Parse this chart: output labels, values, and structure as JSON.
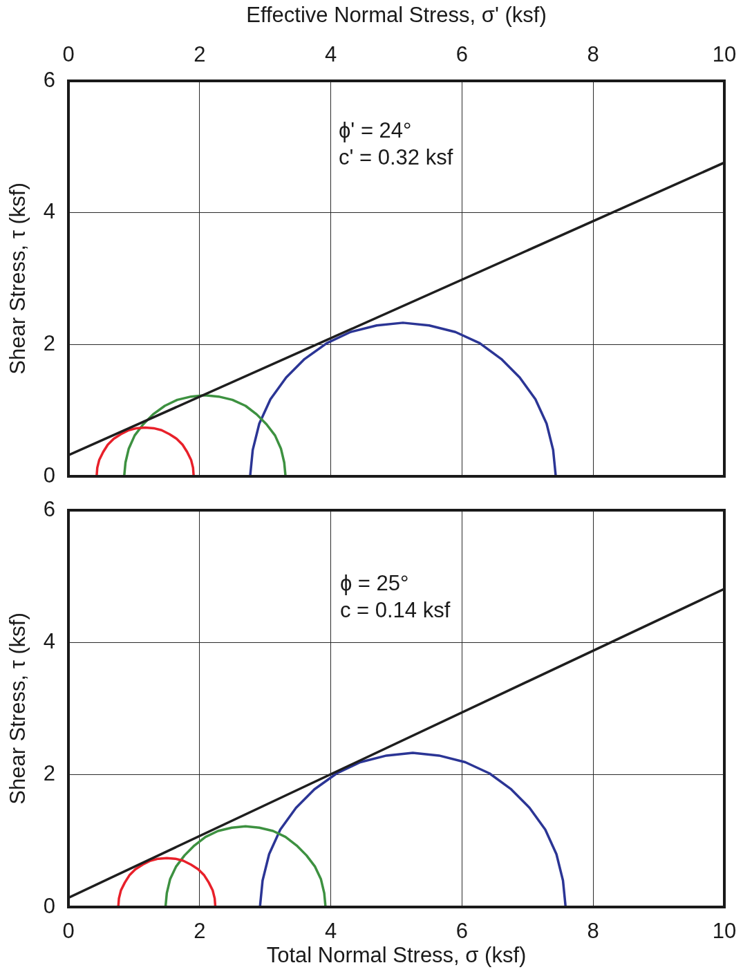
{
  "chart_data": [
    {
      "type": "line",
      "xlabel": "Effective Normal Stress, σ' (ksf)",
      "ylabel": "Shear Stress, τ (ksf)",
      "xlim": [
        0,
        10
      ],
      "xticks": [
        0,
        2,
        4,
        6,
        8,
        10
      ],
      "ylim": [
        0,
        6
      ],
      "yticks": [
        0,
        2,
        4,
        6
      ],
      "grid": true,
      "marker": "none",
      "annotations": [
        "ϕ' = 24°",
        "c' = 0.32 ksf"
      ],
      "series": [
        {
          "color": "#1e1e1e",
          "x": [
            0,
            10
          ],
          "values": [
            0.32,
            4.76
          ]
        },
        {
          "color": "#e8202a",
          "x": [
            0.43,
            0.44,
            0.47,
            0.53,
            0.6,
            0.69,
            0.8,
            0.92,
            1.04,
            1.17,
            1.3,
            1.42,
            1.54,
            1.65,
            1.74,
            1.81,
            1.87,
            1.9,
            1.91
          ],
          "values": [
            0,
            0.13,
            0.25,
            0.37,
            0.48,
            0.57,
            0.64,
            0.7,
            0.73,
            0.74,
            0.73,
            0.7,
            0.64,
            0.57,
            0.48,
            0.37,
            0.25,
            0.13,
            0
          ]
        },
        {
          "color": "#3d9140",
          "x": [
            0.85,
            0.87,
            0.92,
            1.01,
            1.14,
            1.29,
            1.47,
            1.66,
            1.87,
            2.08,
            2.29,
            2.5,
            2.7,
            2.87,
            3.02,
            3.15,
            3.24,
            3.29,
            3.31
          ],
          "values": [
            0,
            0.21,
            0.42,
            0.62,
            0.79,
            0.94,
            1.07,
            1.16,
            1.21,
            1.23,
            1.21,
            1.16,
            1.07,
            0.94,
            0.79,
            0.62,
            0.42,
            0.21,
            0
          ]
        },
        {
          "color": "#2b3595",
          "x": [
            2.77,
            2.81,
            2.91,
            3.08,
            3.32,
            3.6,
            3.94,
            4.3,
            4.7,
            5.1,
            5.5,
            5.9,
            6.27,
            6.6,
            6.88,
            7.12,
            7.29,
            7.39,
            7.43
          ],
          "values": [
            0,
            0.4,
            0.8,
            1.17,
            1.5,
            1.78,
            2.02,
            2.19,
            2.29,
            2.33,
            2.29,
            2.19,
            2.02,
            1.78,
            1.5,
            1.17,
            0.8,
            0.4,
            0
          ]
        }
      ]
    },
    {
      "type": "line",
      "xlabel": "Total Normal Stress, σ (ksf)",
      "ylabel": "Shear Stress, τ (ksf)",
      "xlim": [
        0,
        10
      ],
      "xticks": [
        0,
        2,
        4,
        6,
        8,
        10
      ],
      "ylim": [
        0,
        6
      ],
      "yticks": [
        0,
        2,
        4,
        6
      ],
      "grid": true,
      "marker": "none",
      "annotations": [
        "ϕ = 25°",
        "c = 0.14 ksf"
      ],
      "series": [
        {
          "color": "#1e1e1e",
          "x": [
            0,
            10
          ],
          "values": [
            0.14,
            4.81
          ]
        },
        {
          "color": "#e8202a",
          "x": [
            0.76,
            0.77,
            0.8,
            0.86,
            0.93,
            1.02,
            1.13,
            1.25,
            1.37,
            1.5,
            1.63,
            1.75,
            1.87,
            1.98,
            2.07,
            2.14,
            2.2,
            2.23,
            2.24
          ],
          "values": [
            0,
            0.13,
            0.25,
            0.37,
            0.48,
            0.57,
            0.64,
            0.7,
            0.73,
            0.74,
            0.73,
            0.7,
            0.64,
            0.57,
            0.48,
            0.37,
            0.25,
            0.13,
            0
          ]
        },
        {
          "color": "#3d9140",
          "x": [
            1.48,
            1.5,
            1.55,
            1.64,
            1.77,
            1.92,
            2.09,
            2.28,
            2.49,
            2.7,
            2.91,
            3.12,
            3.31,
            3.48,
            3.63,
            3.76,
            3.85,
            3.9,
            3.92
          ],
          "values": [
            0,
            0.21,
            0.42,
            0.61,
            0.78,
            0.93,
            1.06,
            1.15,
            1.2,
            1.22,
            1.2,
            1.15,
            1.06,
            0.93,
            0.78,
            0.61,
            0.42,
            0.21,
            0
          ]
        },
        {
          "color": "#2b3595",
          "x": [
            2.92,
            2.96,
            3.06,
            3.23,
            3.47,
            3.75,
            4.09,
            4.45,
            4.85,
            5.25,
            5.65,
            6.05,
            6.42,
            6.75,
            7.03,
            7.27,
            7.44,
            7.54,
            7.58
          ],
          "values": [
            0,
            0.4,
            0.8,
            1.17,
            1.5,
            1.78,
            2.02,
            2.19,
            2.29,
            2.33,
            2.29,
            2.19,
            2.02,
            1.78,
            1.5,
            1.17,
            0.8,
            0.4,
            0
          ]
        }
      ]
    }
  ]
}
